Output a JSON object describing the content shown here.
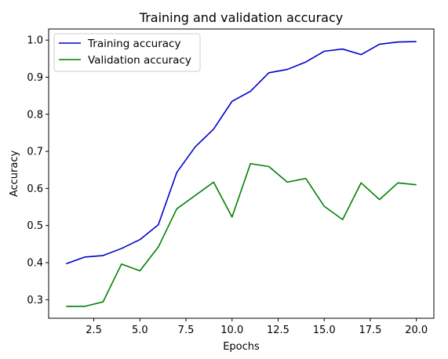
{
  "chart_data": {
    "type": "line",
    "title": "Training and validation accuracy",
    "xlabel": "Epochs",
    "ylabel": "Accuracy",
    "xlim": [
      0.05,
      20.95
    ],
    "ylim": [
      0.25,
      1.03
    ],
    "xticks": [
      2.5,
      5.0,
      7.5,
      10.0,
      12.5,
      15.0,
      17.5,
      20.0
    ],
    "xtick_labels": [
      "2.5",
      "5.0",
      "7.5",
      "10.0",
      "12.5",
      "15.0",
      "17.5",
      "20.0"
    ],
    "yticks": [
      0.3,
      0.4,
      0.5,
      0.6,
      0.7,
      0.8,
      0.9,
      1.0
    ],
    "ytick_labels": [
      "0.3",
      "0.4",
      "0.5",
      "0.6",
      "0.7",
      "0.8",
      "0.9",
      "1.0"
    ],
    "grid": false,
    "legend_position": "top-left",
    "x": [
      1,
      2,
      3,
      4,
      5,
      6,
      7,
      8,
      9,
      10,
      11,
      12,
      13,
      14,
      15,
      16,
      17,
      18,
      19,
      20
    ],
    "series": [
      {
        "name": "Training accuracy",
        "color": "#0000cc",
        "values": [
          0.397,
          0.415,
          0.419,
          0.438,
          0.462,
          0.502,
          0.643,
          0.712,
          0.76,
          0.835,
          0.862,
          0.912,
          0.921,
          0.941,
          0.97,
          0.976,
          0.961,
          0.989,
          0.995,
          0.996
        ]
      },
      {
        "name": "Validation accuracy",
        "color": "#008000",
        "values": [
          0.282,
          0.282,
          0.294,
          0.396,
          0.378,
          0.442,
          0.545,
          0.581,
          0.617,
          0.523,
          0.667,
          0.659,
          0.617,
          0.627,
          0.552,
          0.516,
          0.615,
          0.57,
          0.615,
          0.61
        ]
      }
    ]
  }
}
